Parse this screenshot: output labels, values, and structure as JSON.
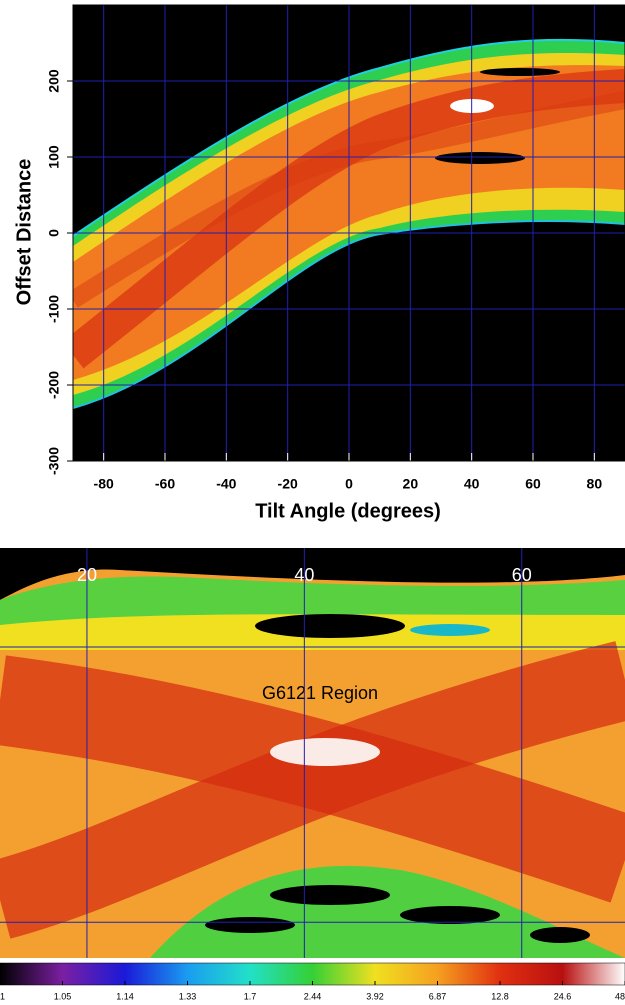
{
  "chart_data": [
    {
      "type": "heatmap",
      "xlabel": "Tilt Angle (degrees)",
      "ylabel": "Offset Distance",
      "xlim": [
        -90,
        90
      ],
      "ylim": [
        -300,
        300
      ],
      "xticks": [
        -80,
        -60,
        -40,
        -20,
        0,
        20,
        40,
        60,
        80
      ],
      "yticks": [
        -300,
        -200,
        -100,
        0,
        100,
        200
      ],
      "grid": true,
      "grid_color": "#2020b0"
    },
    {
      "type": "heatmap",
      "annotation": "G6121 Region",
      "xlim": [
        12,
        69.5
      ],
      "ylim": [
        87,
        236
      ],
      "xticks": [
        20,
        40,
        60
      ],
      "ygrid": [
        100,
        200
      ],
      "grid": true,
      "grid_color": "#2020b0",
      "tick_label_color": "#ffffff"
    },
    {
      "type": "colorbar",
      "ticks": [
        1,
        1.05,
        1.14,
        1.33,
        1.7,
        2.44,
        3.92,
        6.87,
        12.8,
        24.6,
        48
      ],
      "colors": [
        "#000000",
        "#7b1fa2",
        "#1a1ad8",
        "#1a9cf0",
        "#22e0c8",
        "#34d034",
        "#f0e020",
        "#f5a020",
        "#e03010",
        "#b81010",
        "#ffffff"
      ]
    }
  ]
}
